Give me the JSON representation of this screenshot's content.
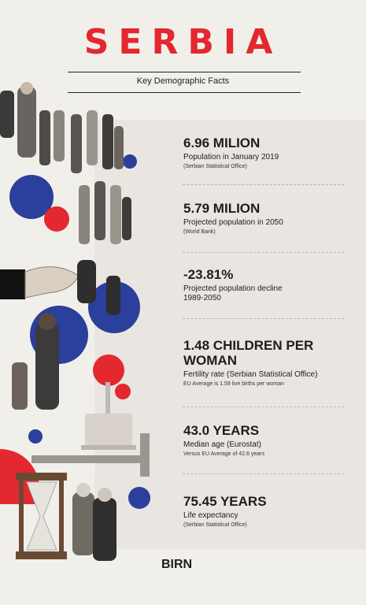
{
  "header": {
    "title": "SERBIA",
    "subtitle": "Key Demographic Facts"
  },
  "facts": [
    {
      "value": "6.96 MILION",
      "label": "Population in January 2019",
      "note": "(Serbian Statistical Office)"
    },
    {
      "value": "5.79 MILION",
      "label": "Projected population in 2050",
      "note": "(World Bank)"
    },
    {
      "value": "-23.81%",
      "label": "Projected population decline",
      "note": "1989-2050"
    },
    {
      "value": "1.48 CHILDREN PER WOMAN",
      "label": "Fertility rate (Serbian Statistical Office)",
      "note": "EU Average is 1.59 live births per woman"
    },
    {
      "value": "43.0 YEARS",
      "label": "Median age (Eurostat)",
      "note": "Versus EU Average of 42.6 years"
    },
    {
      "value": "75.45 YEARS",
      "label": "Life expectancy",
      "note": "(Serbian Statistical Office)"
    }
  ],
  "footer": {
    "logo": "BIRN"
  },
  "colors": {
    "accent_red": "#e3282f",
    "accent_blue": "#2b3f9c",
    "background": "#f1efea"
  },
  "collage_icons": [
    "people-queue-icon",
    "hand-holding-icon",
    "birthday-cake-icon",
    "hourglass-icon",
    "caliper-icon",
    "elderly-couple-icon"
  ]
}
